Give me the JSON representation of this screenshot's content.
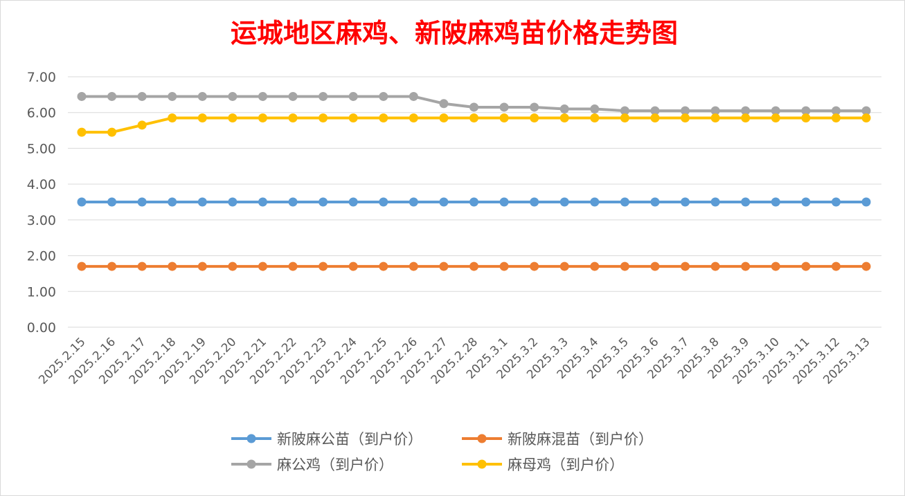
{
  "chart_data": {
    "type": "line",
    "title": "运城地区麻鸡、新陂麻鸡苗价格走势图",
    "xlabel": "",
    "ylabel": "",
    "ylim": [
      0,
      7
    ],
    "yticks": [
      "0.00",
      "1.00",
      "2.00",
      "3.00",
      "4.00",
      "5.00",
      "6.00",
      "7.00"
    ],
    "grid": true,
    "legend_position": "bottom",
    "categories": [
      "2025.2.15",
      "2025.2.16",
      "2025.2.17",
      "2025.2.18",
      "2025.2.19",
      "2025.2.20",
      "2025.2.21",
      "2025.2.22",
      "2025.2.23",
      "2025.2.24",
      "2025.2.25",
      "2025.2.26",
      "2025.2.27",
      "2025.2.28",
      "2025.3.1",
      "2025.3.2",
      "2025.3.3",
      "2025.3.4",
      "2025.3.5",
      "2025.3.6",
      "2025.3.7",
      "2025.3.8",
      "2025.3.9",
      "2025.3.10",
      "2025.3.11",
      "2025.3.12",
      "2025.3.13"
    ],
    "series": [
      {
        "name": "新陂麻公苗（到户价）",
        "color": "#5b9bd5",
        "values": [
          3.5,
          3.5,
          3.5,
          3.5,
          3.5,
          3.5,
          3.5,
          3.5,
          3.5,
          3.5,
          3.5,
          3.5,
          3.5,
          3.5,
          3.5,
          3.5,
          3.5,
          3.5,
          3.5,
          3.5,
          3.5,
          3.5,
          3.5,
          3.5,
          3.5,
          3.5,
          3.5
        ]
      },
      {
        "name": "新陂麻混苗（到户价）",
        "color": "#ed7d31",
        "values": [
          1.7,
          1.7,
          1.7,
          1.7,
          1.7,
          1.7,
          1.7,
          1.7,
          1.7,
          1.7,
          1.7,
          1.7,
          1.7,
          1.7,
          1.7,
          1.7,
          1.7,
          1.7,
          1.7,
          1.7,
          1.7,
          1.7,
          1.7,
          1.7,
          1.7,
          1.7,
          1.7
        ]
      },
      {
        "name": "麻公鸡（到户价）",
        "color": "#a5a5a5",
        "values": [
          6.45,
          6.45,
          6.45,
          6.45,
          6.45,
          6.45,
          6.45,
          6.45,
          6.45,
          6.45,
          6.45,
          6.45,
          6.25,
          6.15,
          6.15,
          6.15,
          6.1,
          6.1,
          6.05,
          6.05,
          6.05,
          6.05,
          6.05,
          6.05,
          6.05,
          6.05,
          6.05
        ]
      },
      {
        "name": "麻母鸡（到户价）",
        "color": "#ffc000",
        "values": [
          5.45,
          5.45,
          5.65,
          5.85,
          5.85,
          5.85,
          5.85,
          5.85,
          5.85,
          5.85,
          5.85,
          5.85,
          5.85,
          5.85,
          5.85,
          5.85,
          5.85,
          5.85,
          5.85,
          5.85,
          5.85,
          5.85,
          5.85,
          5.85,
          5.85,
          5.85,
          5.85
        ]
      }
    ]
  }
}
